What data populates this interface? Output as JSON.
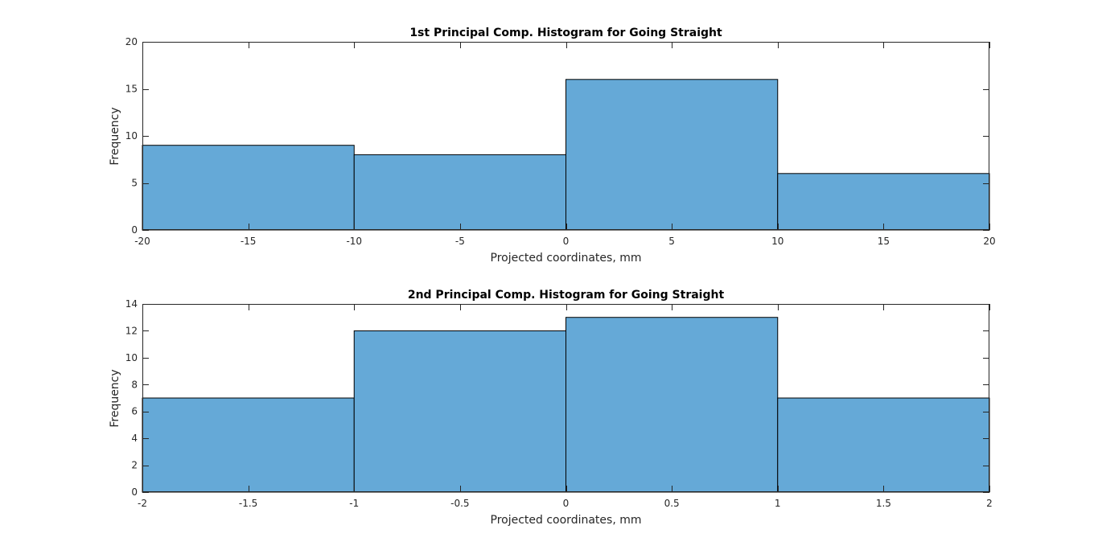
{
  "figure": {
    "background": "#ffffff",
    "bar_color": "#65a9d7",
    "edge_color": "#000000",
    "axis_color": "#262626"
  },
  "chart_data": [
    {
      "type": "bar",
      "subtype": "histogram",
      "title": "1st Principal Comp. Histogram for Going Straight",
      "xlabel": "Projected coordinates, mm",
      "ylabel": "Frequency",
      "bin_edges": [
        -20,
        -10,
        0,
        10,
        20
      ],
      "values": [
        9,
        8,
        16,
        6
      ],
      "xlim": [
        -20,
        20
      ],
      "ylim": [
        0,
        20
      ],
      "xticks": [
        -20,
        -15,
        -10,
        -5,
        0,
        5,
        10,
        15,
        20
      ],
      "xtick_labels": [
        "-20",
        "-15",
        "-10",
        "-5",
        "0",
        "5",
        "10",
        "15",
        "20"
      ],
      "yticks": [
        0,
        5,
        10,
        15,
        20
      ],
      "ytick_labels": [
        "0",
        "5",
        "10",
        "15",
        "20"
      ],
      "grid": false,
      "legend": "none"
    },
    {
      "type": "bar",
      "subtype": "histogram",
      "title": "2nd Principal Comp. Histogram for Going Straight",
      "xlabel": "Projected coordinates, mm",
      "ylabel": "Frequency",
      "bin_edges": [
        -2,
        -1,
        0,
        1,
        2
      ],
      "values": [
        7,
        12,
        13,
        7
      ],
      "xlim": [
        -2,
        2
      ],
      "ylim": [
        0,
        14
      ],
      "xticks": [
        -2,
        -1.5,
        -1,
        -0.5,
        0,
        0.5,
        1,
        1.5,
        2
      ],
      "xtick_labels": [
        "-2",
        "-1.5",
        "-1",
        "-0.5",
        "0",
        "0.5",
        "1",
        "1.5",
        "2"
      ],
      "yticks": [
        0,
        2,
        4,
        6,
        8,
        10,
        12,
        14
      ],
      "ytick_labels": [
        "0",
        "2",
        "4",
        "6",
        "8",
        "10",
        "12",
        "14"
      ],
      "grid": false,
      "legend": "none"
    }
  ]
}
